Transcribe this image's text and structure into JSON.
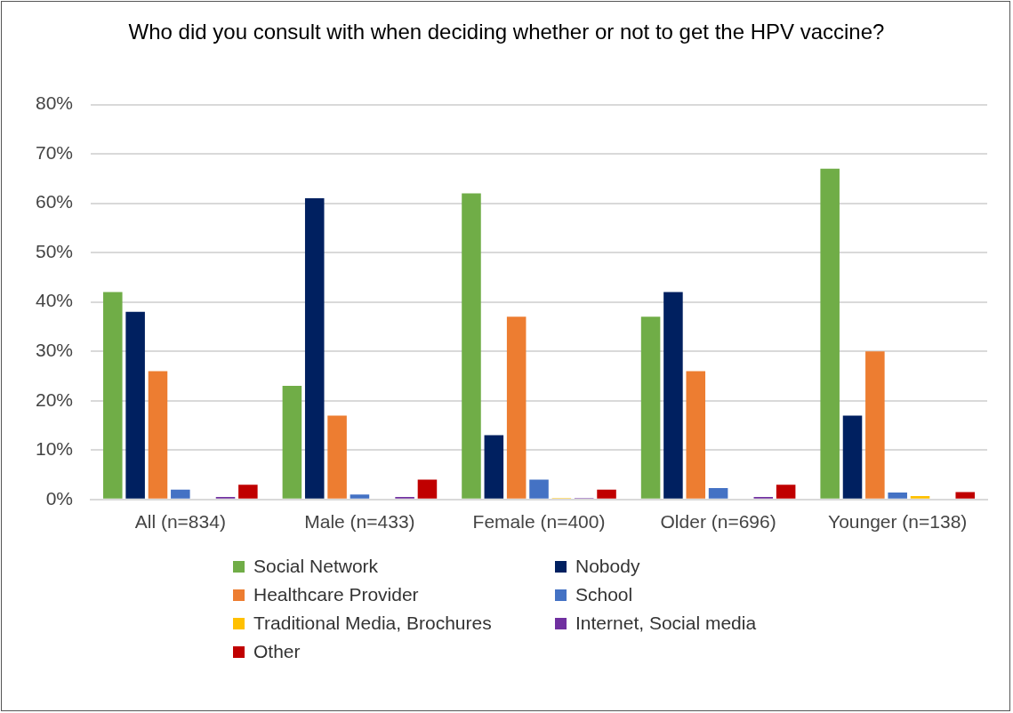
{
  "chart_data": {
    "type": "bar",
    "title": "Who did you consult with when deciding whether or not to get the HPV vaccine?",
    "categories": [
      "All (n=834)",
      "Male (n=433)",
      "Female (n=400)",
      "Older (n=696)",
      "Younger (n=138)"
    ],
    "series": [
      {
        "name": "Social Network",
        "color": "#70ad47",
        "values": [
          42,
          23,
          62,
          37,
          67
        ]
      },
      {
        "name": "Nobody",
        "color": "#002060",
        "values": [
          38,
          61,
          13,
          42,
          17
        ]
      },
      {
        "name": "Healthcare Provider",
        "color": "#ed7d31",
        "values": [
          26,
          17,
          37,
          26,
          30
        ]
      },
      {
        "name": "School",
        "color": "#4472c4",
        "values": [
          2,
          1,
          4,
          2.3,
          1.4
        ]
      },
      {
        "name": "Traditional Media, Brochures",
        "color": "#ffc000",
        "values": [
          0,
          0,
          0.3,
          0,
          0.7
        ]
      },
      {
        "name": "Internet, Social media",
        "color": "#7030a0",
        "values": [
          0.5,
          0.5,
          0.3,
          0.5,
          0
        ]
      },
      {
        "name": "Other",
        "color": "#c00000",
        "values": [
          3,
          4,
          2,
          3,
          1.5
        ]
      }
    ],
    "ylim": [
      0,
      80
    ],
    "yticks": [
      {
        "value": 0,
        "label": "0%"
      },
      {
        "value": 10,
        "label": "10%"
      },
      {
        "value": 20,
        "label": "20%"
      },
      {
        "value": 30,
        "label": "30%"
      },
      {
        "value": 40,
        "label": "40%"
      },
      {
        "value": 50,
        "label": "50%"
      },
      {
        "value": 60,
        "label": "60%"
      },
      {
        "value": 70,
        "label": "70%"
      },
      {
        "value": 80,
        "label": "80%"
      }
    ],
    "grid": "y",
    "legend": "bottom"
  }
}
